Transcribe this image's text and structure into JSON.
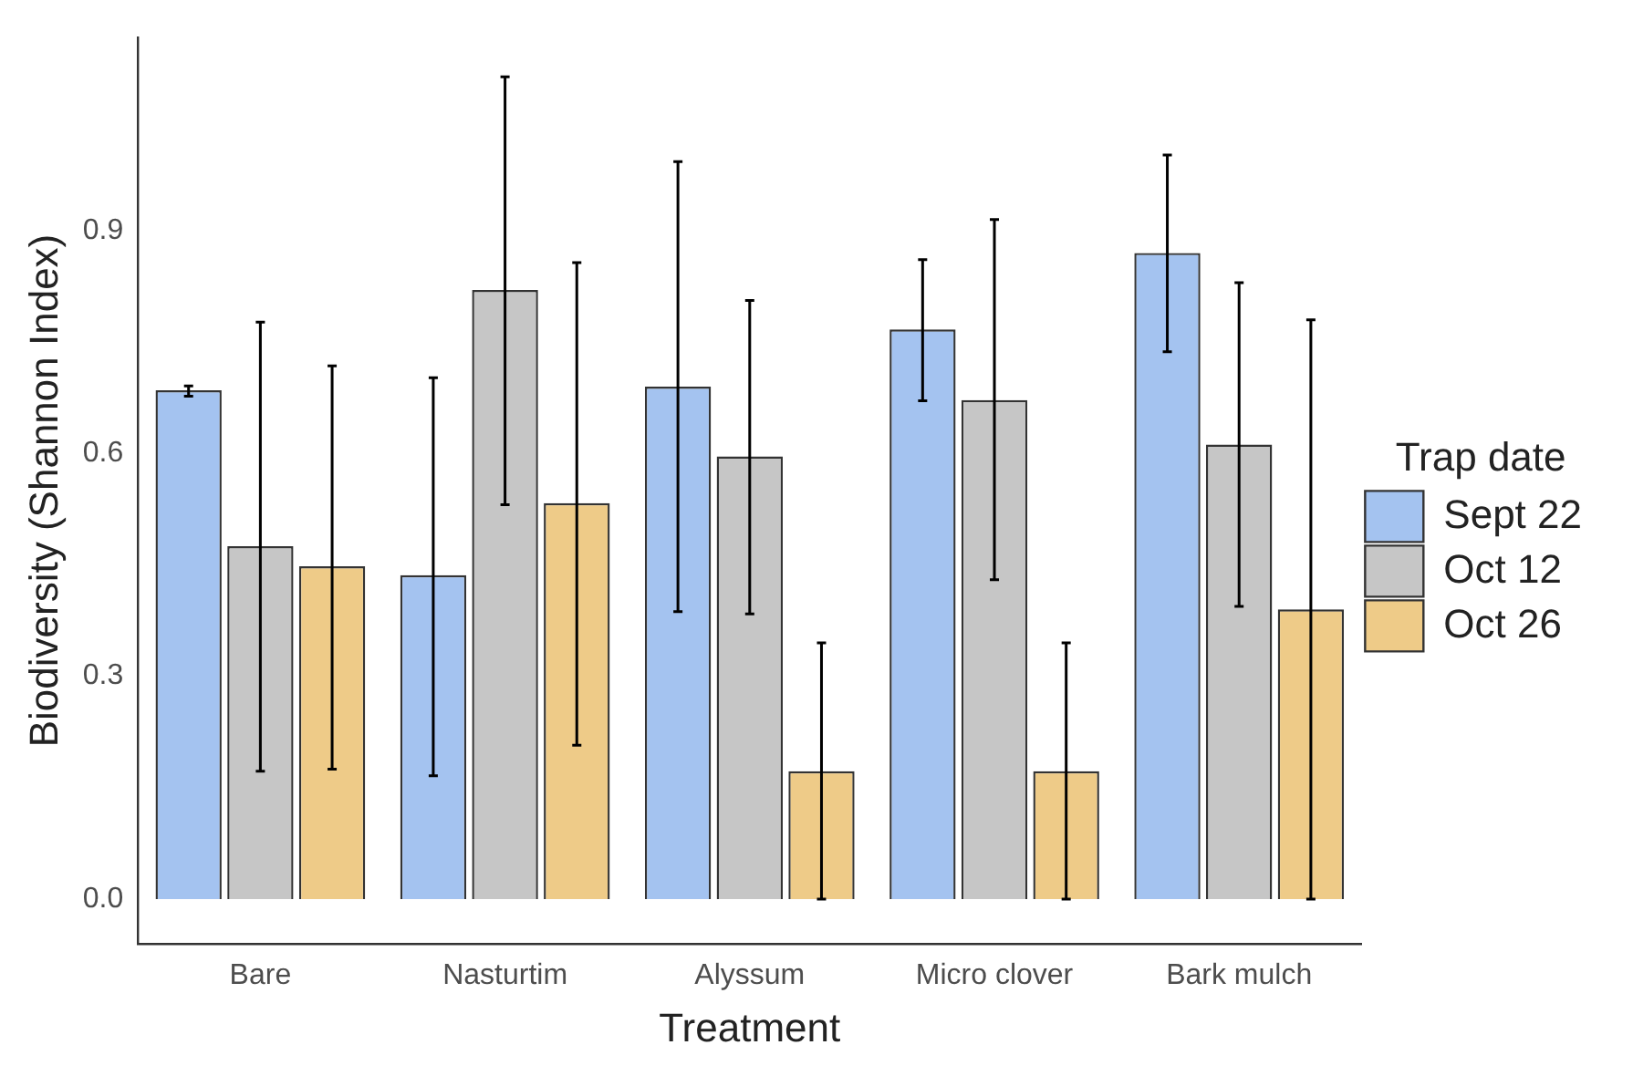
{
  "chart_data": {
    "type": "bar",
    "xlabel": "Treatment",
    "ylabel": "Biodiversity (Shannon Index)",
    "legend_title": "Trap date",
    "legend": "right",
    "grid": false,
    "categories": [
      "Bare",
      "Nasturtim",
      "Alyssum",
      "Micro clover",
      "Bark mulch"
    ],
    "ylim": [
      -0.06,
      1.16
    ],
    "yticks": [
      {
        "value": 0,
        "label": "0.0"
      },
      0.3,
      0.6,
      0.9
    ],
    "series": [
      {
        "name": "Sept 22",
        "color": "#a4c3f0",
        "values": [
          0.685,
          0.436,
          0.69,
          0.767,
          0.87
        ],
        "errors": [
          [
            0.677,
            0.691
          ],
          [
            0.166,
            0.702
          ],
          [
            0.387,
            0.993
          ],
          [
            0.671,
            0.861
          ],
          [
            0.737,
            1.002
          ]
        ]
      },
      {
        "name": "Oct 12",
        "color": "#c6c6c6",
        "values": [
          0.475,
          0.82,
          0.596,
          0.672,
          0.612
        ],
        "errors": [
          [
            0.172,
            0.777
          ],
          [
            0.531,
            1.107
          ],
          [
            0.384,
            0.806
          ],
          [
            0.43,
            0.915
          ],
          [
            0.394,
            0.83
          ]
        ]
      },
      {
        "name": "Oct 26",
        "color": "#eecb88",
        "values": [
          0.448,
          0.533,
          0.172,
          0.172,
          0.39
        ],
        "errors": [
          [
            0.175,
            0.718
          ],
          [
            0.207,
            0.857
          ],
          [
            0,
            0.345
          ],
          [
            0,
            0.345
          ],
          [
            0,
            0.78
          ]
        ]
      }
    ]
  }
}
